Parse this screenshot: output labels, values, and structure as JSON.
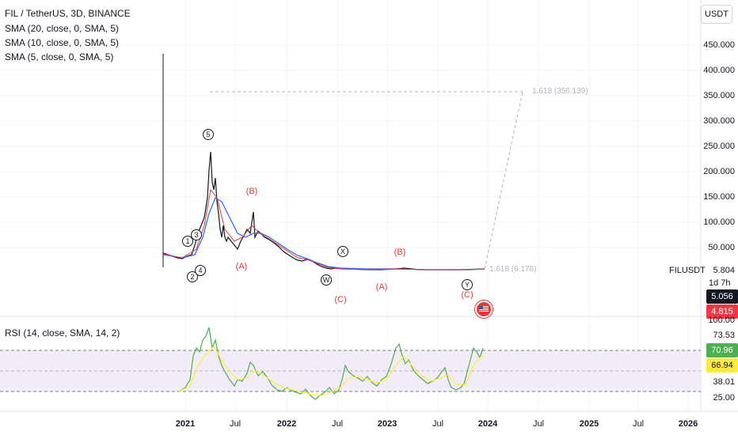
{
  "header": {
    "symbol_title": "FIL / TetherUS, 3D, BINANCE",
    "indicators": [
      "SMA (20, close, 0, SMA, 5)",
      "SMA (10, close, 0, SMA, 5)",
      "SMA (5, close, 0, SMA, 5)"
    ],
    "currency_button": "USDT"
  },
  "price_axis": {
    "ticks": [
      "450.000",
      "400.000",
      "350.000",
      "300.000",
      "250.000",
      "200.000",
      "150.000",
      "100.000",
      "50.000"
    ],
    "symbol_label": "FILUSDT",
    "last_value": "5.804",
    "timer": "1d 7h",
    "price_badge": "5.056",
    "prev_badge": "4.815",
    "price_badge_color": "#131722",
    "prev_badge_color": "#f23645",
    "partial_zero": "0"
  },
  "rsi": {
    "legend": "RSI (14, close, SMA, 14, 2)",
    "ticks": [
      "100.00",
      "73.53",
      "38.01",
      "25.00"
    ],
    "badge_rsi": "70.96",
    "badge_sma": "66.94",
    "badge_rsi_color": "#4caf50",
    "badge_sma_color": "#ffeb3b"
  },
  "time_axis": {
    "labels": [
      {
        "text": "2021",
        "year": true
      },
      {
        "text": "Jul",
        "year": false
      },
      {
        "text": "2022",
        "year": true
      },
      {
        "text": "Jul",
        "year": false
      },
      {
        "text": "2023",
        "year": true
      },
      {
        "text": "Jul",
        "year": false
      },
      {
        "text": "2024",
        "year": true
      },
      {
        "text": "Jul",
        "year": false
      },
      {
        "text": "2025",
        "year": true
      },
      {
        "text": "Jul",
        "year": false
      },
      {
        "text": "2026",
        "year": true
      }
    ]
  },
  "annotations": {
    "fib_upper": "1.618 (356.139)",
    "fib_lower": "1.618 (6.178)",
    "waves_circle": [
      "1",
      "2",
      "3",
      "4",
      "5",
      "W",
      "X",
      "Y"
    ],
    "waves_red": [
      "(B)",
      "(A)",
      "(C)",
      "(A)",
      "(B)",
      "(C)"
    ]
  },
  "colors": {
    "grid": "#f0f3fa",
    "rsi_band": "#ede7f6",
    "rsi_line": "#4caf50",
    "rsi_sma": "#ffeb3b",
    "sma_blue": "#2962ff",
    "candles": "#131722",
    "red_accent": "#e53935"
  }
}
